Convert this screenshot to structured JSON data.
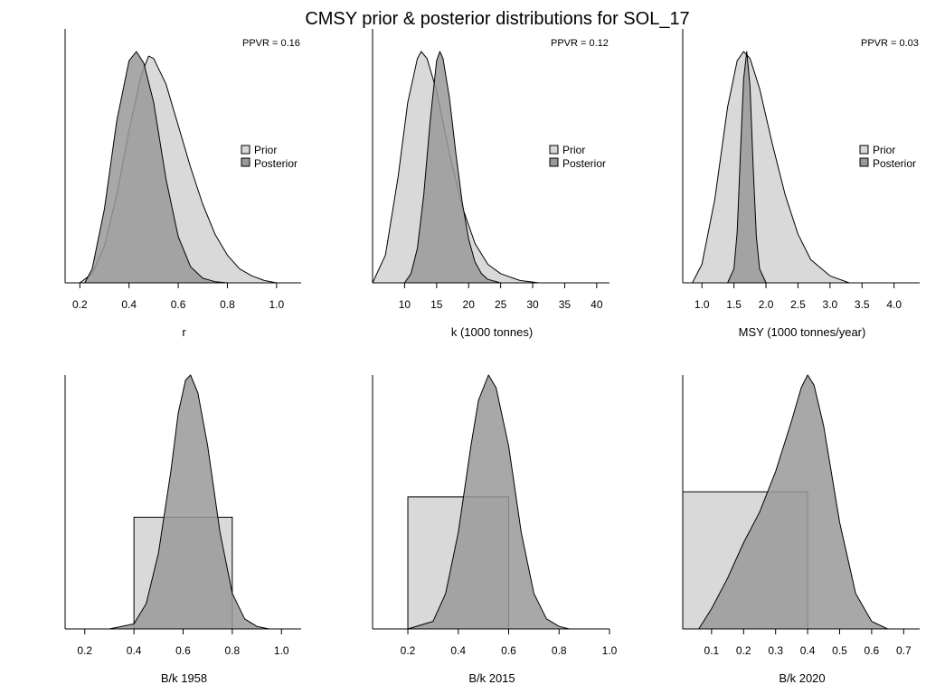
{
  "title": "CMSY prior & posterior distributions for SOL_17",
  "colors": {
    "prior": "#d9d9d9",
    "posterior": "#999999",
    "line": "#000000",
    "axis": "#000000"
  },
  "legend": {
    "prior_label": "Prior",
    "posterior_label": "Posterior"
  },
  "chart_data": [
    {
      "type": "area",
      "xlabel": "r",
      "ppvr": "PPVR = 0.16",
      "xlim": [
        0.14,
        1.1
      ],
      "ticks": [
        0.2,
        0.4,
        0.6,
        0.8,
        1.0
      ],
      "tick_labels": [
        "0.2",
        "0.4",
        "0.6",
        "0.8",
        "1.0"
      ],
      "legend_position": "right",
      "series": [
        {
          "name": "Prior",
          "kind": "density",
          "x": [
            0.2,
            0.25,
            0.3,
            0.35,
            0.4,
            0.45,
            0.48,
            0.5,
            0.55,
            0.6,
            0.65,
            0.7,
            0.75,
            0.8,
            0.85,
            0.9,
            0.95,
            1.0
          ],
          "y": [
            0.0,
            0.04,
            0.16,
            0.38,
            0.66,
            0.9,
            0.98,
            0.97,
            0.86,
            0.68,
            0.5,
            0.34,
            0.21,
            0.12,
            0.06,
            0.03,
            0.01,
            0.0
          ]
        },
        {
          "name": "Posterior",
          "kind": "density",
          "x": [
            0.22,
            0.25,
            0.3,
            0.35,
            0.4,
            0.43,
            0.46,
            0.5,
            0.55,
            0.6,
            0.65,
            0.7,
            0.75,
            0.8
          ],
          "y": [
            0.0,
            0.06,
            0.32,
            0.7,
            0.96,
            1.0,
            0.95,
            0.78,
            0.45,
            0.2,
            0.07,
            0.02,
            0.005,
            0.0
          ]
        }
      ]
    },
    {
      "type": "area",
      "xlabel": "k (1000 tonnes)",
      "ppvr": "PPVR = 0.12",
      "xlim": [
        5,
        42
      ],
      "ticks": [
        10,
        15,
        20,
        25,
        30,
        35,
        40
      ],
      "tick_labels": [
        "10",
        "15",
        "20",
        "25",
        "30",
        "35",
        "40"
      ],
      "legend_position": "right",
      "series": [
        {
          "name": "Prior",
          "kind": "density",
          "x": [
            5,
            7,
            9,
            10.5,
            12,
            12.6,
            13.5,
            15,
            17,
            19,
            21,
            23,
            25,
            28,
            31
          ],
          "y": [
            0.0,
            0.12,
            0.46,
            0.78,
            0.97,
            1.0,
            0.97,
            0.83,
            0.56,
            0.33,
            0.17,
            0.08,
            0.04,
            0.01,
            0.0
          ]
        },
        {
          "name": "Posterior",
          "kind": "density",
          "x": [
            10,
            11,
            12,
            13,
            14,
            15,
            15.5,
            16,
            17,
            18,
            19,
            20,
            21,
            22,
            23,
            25
          ],
          "y": [
            0.0,
            0.04,
            0.15,
            0.38,
            0.7,
            0.96,
            1.0,
            0.97,
            0.8,
            0.56,
            0.35,
            0.19,
            0.09,
            0.04,
            0.015,
            0.0
          ]
        }
      ]
    },
    {
      "type": "area",
      "xlabel": "MSY (1000 tonnes/year)",
      "ppvr": "PPVR = 0.03",
      "xlim": [
        0.7,
        4.4
      ],
      "ticks": [
        1.0,
        1.5,
        2.0,
        2.5,
        3.0,
        3.5,
        4.0
      ],
      "tick_labels": [
        "1.0",
        "1.5",
        "2.0",
        "2.5",
        "3.0",
        "3.5",
        "4.0"
      ],
      "legend_position": "right",
      "series": [
        {
          "name": "Prior",
          "kind": "density",
          "x": [
            0.85,
            1.0,
            1.2,
            1.4,
            1.55,
            1.65,
            1.75,
            1.9,
            2.1,
            2.3,
            2.5,
            2.7,
            3.0,
            3.3
          ],
          "y": [
            0.0,
            0.08,
            0.36,
            0.76,
            0.96,
            1.0,
            0.97,
            0.84,
            0.6,
            0.38,
            0.21,
            0.1,
            0.03,
            0.0
          ]
        },
        {
          "name": "Posterior",
          "kind": "density",
          "x": [
            1.4,
            1.5,
            1.55,
            1.6,
            1.65,
            1.7,
            1.75,
            1.8,
            1.85,
            1.9,
            2.0
          ],
          "y": [
            0.0,
            0.06,
            0.22,
            0.55,
            0.88,
            1.0,
            0.85,
            0.5,
            0.2,
            0.06,
            0.0
          ]
        }
      ]
    },
    {
      "type": "area",
      "xlabel": "B/k 1958",
      "xlim": [
        0.12,
        1.08
      ],
      "ticks": [
        0.2,
        0.4,
        0.6,
        0.8,
        1.0
      ],
      "tick_labels": [
        "0.2",
        "0.4",
        "0.6",
        "0.8",
        "1.0"
      ],
      "series": [
        {
          "name": "Prior",
          "kind": "uniform",
          "range": [
            0.4,
            0.8
          ],
          "height": 0.44
        },
        {
          "name": "Posterior",
          "kind": "density",
          "x": [
            0.3,
            0.4,
            0.45,
            0.5,
            0.55,
            0.58,
            0.61,
            0.63,
            0.66,
            0.7,
            0.75,
            0.8,
            0.85,
            0.9,
            0.95
          ],
          "y": [
            0.0,
            0.02,
            0.1,
            0.3,
            0.62,
            0.85,
            0.98,
            1.0,
            0.93,
            0.72,
            0.38,
            0.14,
            0.04,
            0.01,
            0.0
          ]
        }
      ]
    },
    {
      "type": "area",
      "xlabel": "B/k 2015",
      "xlim": [
        0.06,
        1.0
      ],
      "ticks": [
        0.2,
        0.4,
        0.6,
        0.8,
        1.0
      ],
      "tick_labels": [
        "0.2",
        "0.4",
        "0.6",
        "0.8",
        "1.0"
      ],
      "series": [
        {
          "name": "Prior",
          "kind": "uniform",
          "range": [
            0.2,
            0.6
          ],
          "height": 0.52
        },
        {
          "name": "Posterior",
          "kind": "density",
          "x": [
            0.2,
            0.3,
            0.35,
            0.4,
            0.45,
            0.48,
            0.52,
            0.55,
            0.6,
            0.65,
            0.7,
            0.75,
            0.8,
            0.84
          ],
          "y": [
            0.0,
            0.03,
            0.14,
            0.38,
            0.72,
            0.9,
            1.0,
            0.95,
            0.72,
            0.38,
            0.14,
            0.04,
            0.01,
            0.0
          ]
        }
      ]
    },
    {
      "type": "area",
      "xlabel": "B/k 2020",
      "xlim": [
        0.01,
        0.75
      ],
      "ticks": [
        0.1,
        0.2,
        0.3,
        0.4,
        0.5,
        0.6,
        0.7
      ],
      "tick_labels": [
        "0.1",
        "0.2",
        "0.3",
        "0.4",
        "0.5",
        "0.6",
        "0.7"
      ],
      "series": [
        {
          "name": "Prior",
          "kind": "uniform",
          "range": [
            0.01,
            0.4
          ],
          "height": 0.54
        },
        {
          "name": "Posterior",
          "kind": "density",
          "x": [
            0.06,
            0.1,
            0.15,
            0.2,
            0.25,
            0.3,
            0.35,
            0.38,
            0.4,
            0.42,
            0.45,
            0.5,
            0.55,
            0.6,
            0.65
          ],
          "y": [
            0.0,
            0.08,
            0.2,
            0.34,
            0.46,
            0.62,
            0.82,
            0.95,
            1.0,
            0.96,
            0.8,
            0.42,
            0.14,
            0.03,
            0.0
          ]
        }
      ]
    }
  ]
}
